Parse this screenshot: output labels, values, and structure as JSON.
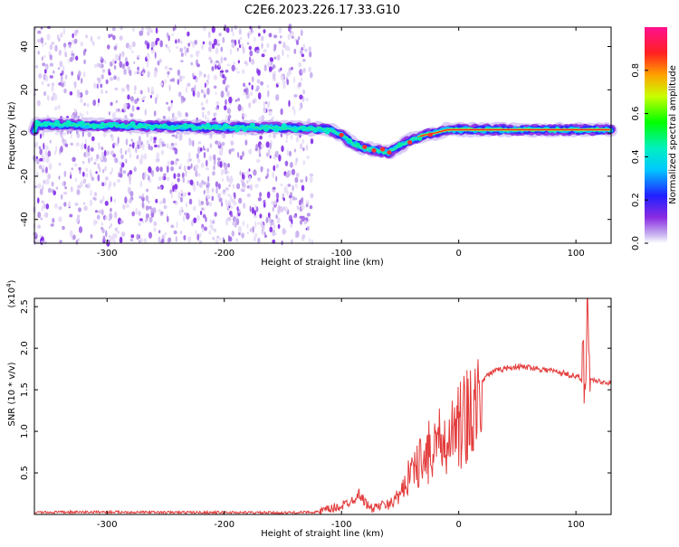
{
  "title": "C2E6.2023.226.17.33.G10",
  "colors": {
    "signal": "#e33b3b",
    "noise": "#7a1ee8",
    "frame": "#000000"
  },
  "chart_data": [
    {
      "type": "heatmap",
      "xlabel": "Height of straight line (km)",
      "ylabel": "Frequency (Hz)",
      "xlim": [
        -362,
        130
      ],
      "ylim": [
        -51,
        49
      ],
      "xticks": [
        -300,
        -200,
        -100,
        0,
        100
      ],
      "yticks": [
        -40,
        -20,
        0,
        20,
        40
      ],
      "colorbar": {
        "label": "Normalized spectral amplitude",
        "range": [
          0,
          1
        ],
        "ticks": [
          0.0,
          0.2,
          0.4,
          0.6,
          0.8
        ]
      },
      "trace_center_hz": [
        [
          -360,
          4
        ],
        [
          -300,
          3.5
        ],
        [
          -250,
          3
        ],
        [
          -200,
          2.5
        ],
        [
          -150,
          2.5
        ],
        [
          -125,
          2
        ],
        [
          -110,
          1.5
        ],
        [
          -100,
          -1
        ],
        [
          -90,
          -5
        ],
        [
          -80,
          -7
        ],
        [
          -70,
          -8
        ],
        [
          -60,
          -9
        ],
        [
          -50,
          -6
        ],
        [
          -40,
          -3
        ],
        [
          -30,
          -1
        ],
        [
          -20,
          0
        ],
        [
          -10,
          1.5
        ],
        [
          0,
          1.5
        ],
        [
          50,
          1.5
        ],
        [
          100,
          1.5
        ],
        [
          130,
          1.5
        ]
      ],
      "noise_region_x": [
        -362,
        -125
      ]
    },
    {
      "type": "line",
      "xlabel": "Height of straight line (km)",
      "ylabel": "SNR (10 * v/v)",
      "yunit": "(x10",
      "yunit_exp": "4",
      "yunit_close": ")",
      "xlim": [
        -362,
        130
      ],
      "ylim": [
        0,
        26000
      ],
      "xticks": [
        -300,
        -200,
        -100,
        0,
        100
      ],
      "yticks": [
        5000,
        10000,
        15000,
        20000,
        25000
      ],
      "ytick_labels": [
        "0.5",
        "1.0",
        "1.5",
        "2.0",
        "2.5"
      ],
      "envelope": [
        [
          -362,
          250
        ],
        [
          -300,
          300
        ],
        [
          -250,
          250
        ],
        [
          -200,
          250
        ],
        [
          -150,
          200
        ],
        [
          -120,
          300
        ],
        [
          -110,
          600
        ],
        [
          -100,
          1000
        ],
        [
          -95,
          1400
        ],
        [
          -90,
          1800
        ],
        [
          -85,
          2500
        ],
        [
          -80,
          1500
        ],
        [
          -75,
          700
        ],
        [
          -70,
          900
        ],
        [
          -65,
          1100
        ],
        [
          -60,
          1300
        ],
        [
          -55,
          2200
        ],
        [
          -50,
          3500
        ],
        [
          -45,
          5000
        ],
        [
          -40,
          6500
        ],
        [
          -35,
          8000
        ],
        [
          -30,
          9000
        ],
        [
          -25,
          10000
        ],
        [
          -20,
          10500
        ],
        [
          -15,
          11000
        ],
        [
          -10,
          11800
        ],
        [
          -5,
          12500
        ],
        [
          0,
          13200
        ],
        [
          5,
          14200
        ],
        [
          10,
          14800
        ],
        [
          15,
          15500
        ],
        [
          20,
          16200
        ],
        [
          25,
          16800
        ],
        [
          30,
          17200
        ],
        [
          40,
          17600
        ],
        [
          50,
          17800
        ],
        [
          60,
          17700
        ],
        [
          70,
          17500
        ],
        [
          80,
          17300
        ],
        [
          90,
          17000
        ],
        [
          100,
          16600
        ],
        [
          105,
          16300
        ],
        [
          108,
          18000
        ],
        [
          109,
          24000
        ],
        [
          110,
          27000
        ],
        [
          111,
          19000
        ],
        [
          112,
          16200
        ],
        [
          115,
          16200
        ],
        [
          120,
          16000
        ],
        [
          125,
          15900
        ],
        [
          130,
          15800
        ]
      ]
    }
  ]
}
